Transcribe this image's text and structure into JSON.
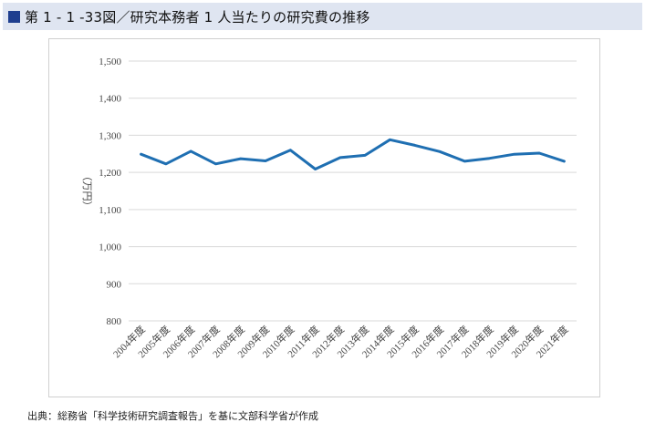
{
  "figure": {
    "title": "第 1 - 1 -33図／研究本務者 1 人当たりの研究費の推移",
    "source": "出典：総務省「科学技術研究調査報告」を基に文部科学省が作成"
  },
  "colors": {
    "line": "#1f6fb2",
    "title_bg": "#dfe5f1",
    "title_square": "#1f3f8f",
    "grid": "#d9d9d9"
  },
  "chart_data": {
    "type": "line",
    "title": "",
    "xlabel": "",
    "ylabel": "（万円）",
    "ylim": [
      800,
      1500
    ],
    "yticks": [
      800,
      900,
      1000,
      1100,
      1200,
      1300,
      1400,
      1500
    ],
    "ytick_labels": [
      "800",
      "900",
      "1,000",
      "1,100",
      "1,200",
      "1,300",
      "1,400",
      "1,500"
    ],
    "categories": [
      "2004年度",
      "2005年度",
      "2006年度",
      "2007年度",
      "2008年度",
      "2009年度",
      "2010年度",
      "2011年度",
      "2012年度",
      "2013年度",
      "2014年度",
      "2015年度",
      "2016年度",
      "2017年度",
      "2018年度",
      "2019年度",
      "2020年度",
      "2021年度"
    ],
    "series": [
      {
        "values": [
          1249,
          1223,
          1257,
          1223,
          1237,
          1231,
          1260,
          1209,
          1240,
          1246,
          1288,
          1273,
          1256,
          1230,
          1238,
          1249,
          1252,
          1230
        ]
      }
    ],
    "grid": true,
    "legend": "none"
  }
}
